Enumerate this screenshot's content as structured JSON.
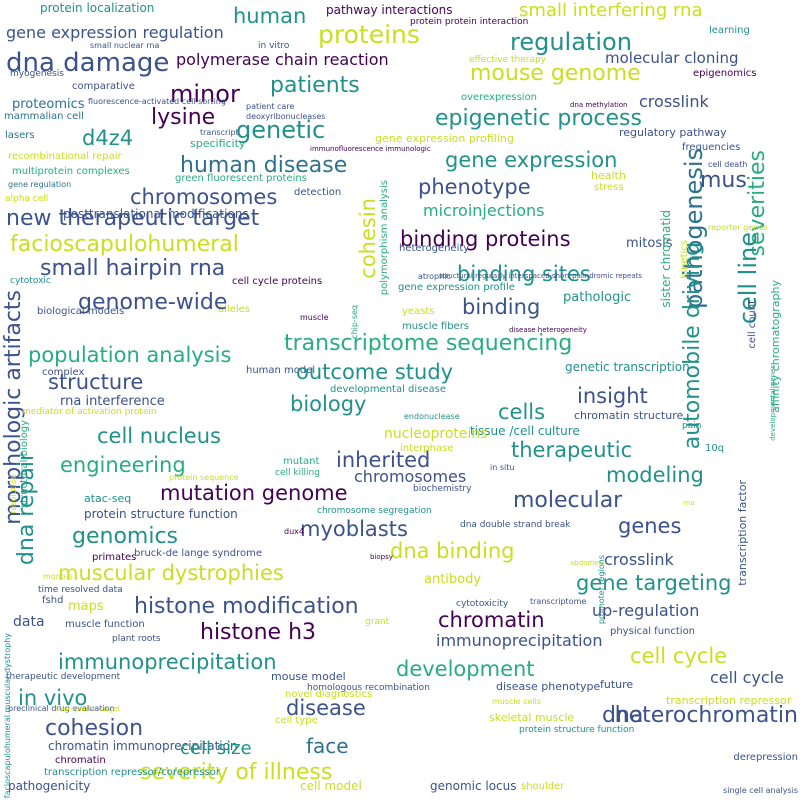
{
  "palette": {
    "purple": "#440154",
    "indigo": "#3b528b",
    "blue": "#2c728e",
    "teal": "#21918c",
    "green": "#27ad81",
    "lime": "#5ec962",
    "yellow": "#c8e020"
  },
  "words": [
    "protein localization",
    "human",
    "small interfering rna",
    "pathway interactions",
    "protein protein interaction",
    "gene expression regulation",
    "proteins",
    "regulation",
    "small nuclear rna",
    "in vitro",
    "learning",
    "dna damage",
    "polymerase chain reaction",
    "molecular cloning",
    "myogenesis",
    "effective therapy",
    "mouse genome",
    "epigenomics",
    "patients",
    "minor",
    "comparative",
    "overexpression",
    "crosslink",
    "proteomics",
    "fluorescence-activated cell sorting",
    "patient care",
    "dna methylation",
    "mammalian cell",
    "deoxyribonucleases",
    "lysine",
    "epigenetic process",
    "lasers",
    "d4z4",
    "genetic",
    "transcript",
    "regulatory pathway",
    "specificity",
    "gene expression profiling",
    "frequencies",
    "immunofluorescence immunologic",
    "recombinational repair",
    "gene expression",
    "human disease",
    "cell death",
    "multiprotein complexes",
    "gene regulation",
    "health",
    "green fluorescent proteins",
    "mus",
    "chromosomes",
    "stress",
    "phenotype",
    "alpha cell",
    "detection",
    "severities",
    "new therapeutic target",
    "microinjections",
    "reporter genes",
    "pathogenesis",
    "posttranslational modifications",
    "binding proteins",
    "mitosis",
    "facioscapulohumeral",
    "heterogeneity",
    "cohesin",
    "binding sites",
    "small hairpin rna",
    "cell cycle proteins",
    "cytotoxic",
    "atrophic",
    "gene expression profile",
    "pathologic",
    "kinetics",
    "sister chromatid",
    "biological models",
    "alleles",
    "muscle",
    "yeasts",
    "binding",
    "genome-wide",
    "muscle fibers",
    "disease heterogeneity",
    "transcriptome sequencing",
    "population analysis",
    "chip-seq",
    "polymorphism analysis",
    "morphologic artifacts",
    "complex",
    "human model",
    "genetic transcription",
    "structure",
    "outcome study",
    "insight",
    "developmental disease",
    "rna interference",
    "mediator of activation protein",
    "endonuclease",
    "biology",
    "cell line",
    "chromatin structure",
    "automobile driving",
    "cell nucleus",
    "cells",
    "tissue /cell culture",
    "nucleoproteins",
    "therapeutic",
    "interphase",
    "engineering",
    "inherited",
    "10q",
    "chromosomes",
    "mutant",
    "structural biology",
    "protein sequence",
    "cell killing",
    "biochemistry",
    "dna repair",
    "in situ",
    "modeling",
    "mutation genome",
    "resolution",
    "atac-seq",
    "chromosome segregation",
    "protein structure function",
    "genomics",
    "molecular",
    "genes",
    "primates",
    "myoblasts",
    "dna double strand break",
    "dux4",
    "dna binding",
    "bruck-de lange syndrome",
    "mono-s",
    "biopsy",
    "crosslink",
    "muscular dystrophies",
    "abdomen",
    "antibody",
    "gene targeting",
    "time resolved data",
    "data",
    "promoter regions",
    "fshd",
    "maps",
    "histone modification",
    "cytotoxicity",
    "chromatin",
    "grant",
    "transcriptome",
    "up-regulation",
    "muscle function",
    "histone h3",
    "immunoprecipitation",
    "physical function",
    "plant roots",
    "cell cycle",
    "immunoprecipitation",
    "therapeutic development",
    "development",
    "mouse model",
    "transcription factor",
    "cell cycle",
    "homologous recombination",
    "disease phenotype",
    "future",
    "novel diagnostics",
    "in vivo",
    "transcription repressor",
    "preclinical drug evaluation",
    "therapeutic target",
    "muscle cells",
    "disease",
    "dna",
    "heterochromatin",
    "cohesion",
    "skeletal muscle",
    "protein structure function",
    "cell type",
    "chromatin immunoprecipitation",
    "face",
    "derepression",
    "chromatin",
    "cell size",
    "facioscapulohumeral muscular dystrophy",
    "severity of illness",
    "transcription repressor/corepressor",
    "pathogenicity",
    "cell model",
    "genomic locus",
    "shoulder",
    "single cell analysis",
    "developmental genes",
    "affinity chromatography",
    "cell count",
    "rna",
    "pain",
    "structural regularly interspaced short palindromic repeats"
  ]
}
